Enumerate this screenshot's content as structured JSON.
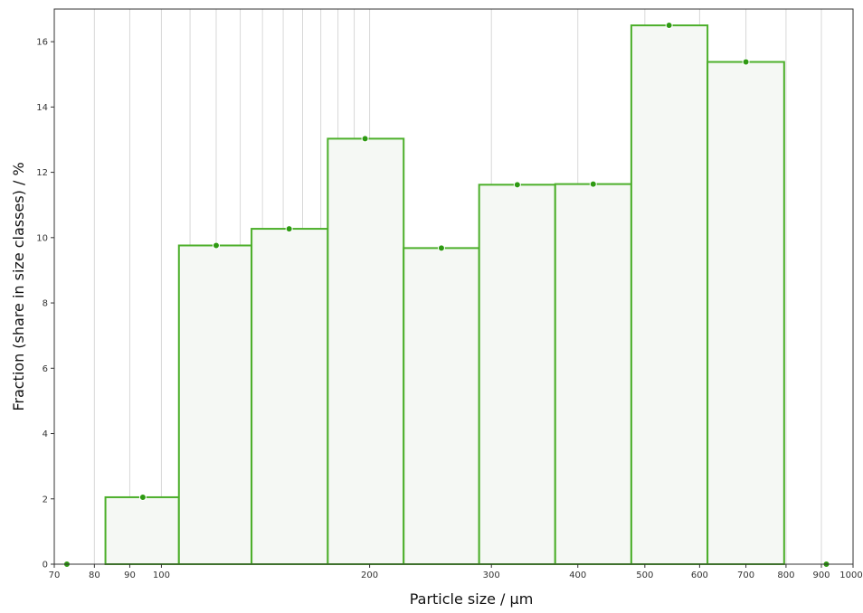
{
  "chart_data": {
    "type": "bar",
    "subtype": "histogram",
    "xlabel": "Particle size / µm",
    "ylabel": "Fraction (share in size classes) / %",
    "x_scale": "log",
    "xlim": [
      70,
      1000
    ],
    "ylim": [
      0,
      17
    ],
    "x_ticks": [
      {
        "value": 70,
        "label": "70"
      },
      {
        "value": 80,
        "label": "80"
      },
      {
        "value": 90,
        "label": "90"
      },
      {
        "value": 100,
        "label": "100"
      },
      {
        "value": 200,
        "label": "200"
      },
      {
        "value": 300,
        "label": "300"
      },
      {
        "value": 400,
        "label": "400"
      },
      {
        "value": 500,
        "label": "500"
      },
      {
        "value": 600,
        "label": "600"
      },
      {
        "value": 700,
        "label": "700"
      },
      {
        "value": 800,
        "label": "800"
      },
      {
        "value": 900,
        "label": "900"
      },
      {
        "value": 1000,
        "label": "1000"
      }
    ],
    "y_ticks": [
      {
        "value": 0,
        "label": "0"
      },
      {
        "value": 2,
        "label": "2"
      },
      {
        "value": 4,
        "label": "4"
      },
      {
        "value": 6,
        "label": "6"
      },
      {
        "value": 8,
        "label": "8"
      },
      {
        "value": 10,
        "label": "10"
      },
      {
        "value": 12,
        "label": "12"
      },
      {
        "value": 14,
        "label": "14"
      },
      {
        "value": 16,
        "label": "16"
      }
    ],
    "grid": {
      "x": true,
      "y": false
    },
    "bins": [
      {
        "from": 83,
        "to": 106,
        "value": 2.05,
        "midpoint": 94
      },
      {
        "from": 106,
        "to": 135,
        "value": 9.76,
        "midpoint": 120
      },
      {
        "from": 135,
        "to": 174,
        "value": 10.27,
        "midpoint": 153
      },
      {
        "from": 174,
        "to": 224,
        "value": 13.03,
        "midpoint": 197
      },
      {
        "from": 224,
        "to": 288,
        "value": 9.68,
        "midpoint": 254
      },
      {
        "from": 288,
        "to": 371,
        "value": 11.62,
        "midpoint": 327
      },
      {
        "from": 371,
        "to": 478,
        "value": 11.64,
        "midpoint": 421
      },
      {
        "from": 478,
        "to": 616,
        "value": 16.5,
        "midpoint": 542
      },
      {
        "from": 616,
        "to": 795,
        "value": 15.38,
        "midpoint": 700
      }
    ],
    "extra_points": [
      {
        "x": 73,
        "y": 0
      },
      {
        "x": 915,
        "y": 0
      }
    ],
    "colors": {
      "bar_stroke": "#4caf2a",
      "bar_fill": "#f5f8f4",
      "marker": "#2e9a12"
    }
  }
}
